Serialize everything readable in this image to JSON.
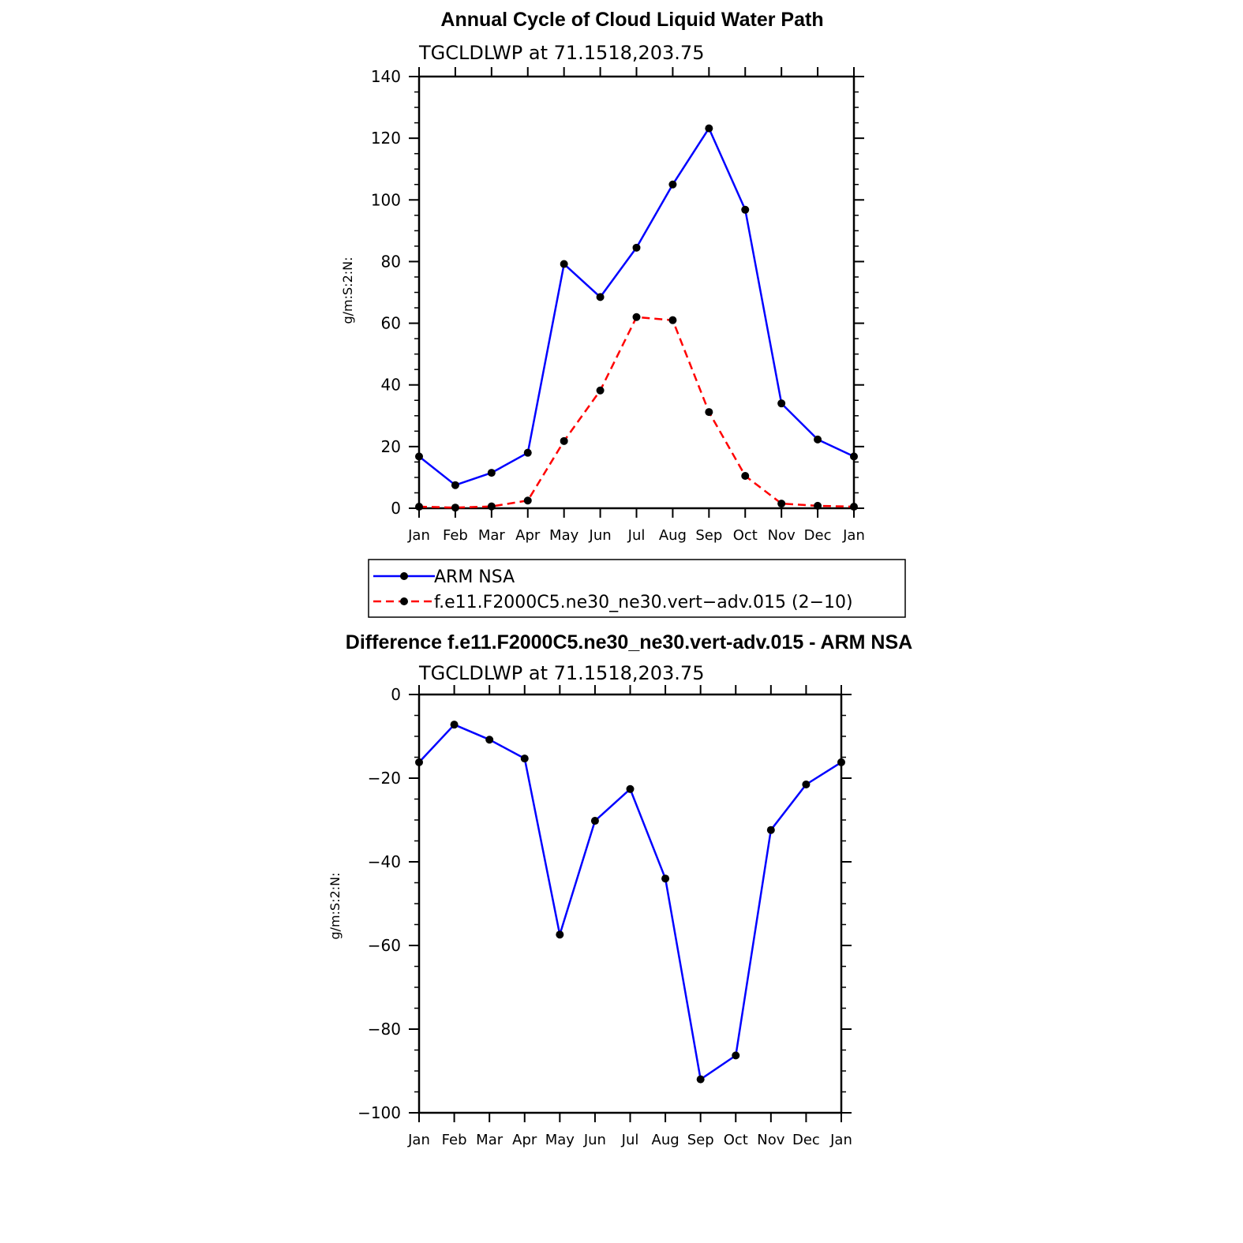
{
  "chart_data": [
    {
      "type": "line",
      "title": "Annual Cycle of Cloud Liquid Water Path",
      "subtitle": "TGCLDLWP  at  71.1518,203.75",
      "ylabel": "g/m:S:2:N:",
      "xlabel": "",
      "categories": [
        "Jan",
        "Feb",
        "Mar",
        "Apr",
        "May",
        "Jun",
        "Jul",
        "Aug",
        "Sep",
        "Oct",
        "Nov",
        "Dec",
        "Jan"
      ],
      "ylim": [
        0,
        140
      ],
      "yticks": [
        0,
        20,
        40,
        60,
        80,
        100,
        120,
        140
      ],
      "yminor_step": 5,
      "grid": false,
      "legend_position": "bottom",
      "series": [
        {
          "name": "ARM  NSA",
          "color": "#0000ff",
          "dash": "solid",
          "values": [
            16.8,
            7.5,
            11.5,
            18.0,
            79.2,
            68.5,
            84.5,
            105.0,
            123.2,
            96.8,
            34.0,
            22.3,
            16.8
          ]
        },
        {
          "name": "f.e11.F2000C5.ne30_ne30.vert−adv.015 (2−10)",
          "color": "#ff0000",
          "dash": "dashed",
          "values": [
            0.5,
            0.2,
            0.6,
            2.5,
            21.8,
            38.2,
            62.0,
            61.0,
            31.2,
            10.5,
            1.5,
            0.8,
            0.5
          ]
        }
      ]
    },
    {
      "type": "line",
      "title": "Difference f.e11.F2000C5.ne30_ne30.vert-adv.015 - ARM NSA",
      "subtitle": "TGCLDLWP  at  71.1518,203.75",
      "ylabel": "g/m:S:2:N:",
      "xlabel": "",
      "categories": [
        "Jan",
        "Feb",
        "Mar",
        "Apr",
        "May",
        "Jun",
        "Jul",
        "Aug",
        "Sep",
        "Oct",
        "Nov",
        "Dec",
        "Jan"
      ],
      "ylim": [
        -100,
        0
      ],
      "yticks": [
        -100,
        -80,
        -60,
        -40,
        -20,
        0
      ],
      "ytick_labels": [
        "−100",
        "−80",
        "−60",
        "−40",
        "−20",
        "0"
      ],
      "yminor_step": 5,
      "grid": false,
      "series": [
        {
          "color": "#0000ff",
          "dash": "solid",
          "values": [
            -16.2,
            -7.2,
            -10.8,
            -15.3,
            -57.4,
            -30.2,
            -22.6,
            -44.0,
            -92.0,
            -86.3,
            -32.4,
            -21.5,
            -16.2
          ]
        }
      ]
    }
  ]
}
